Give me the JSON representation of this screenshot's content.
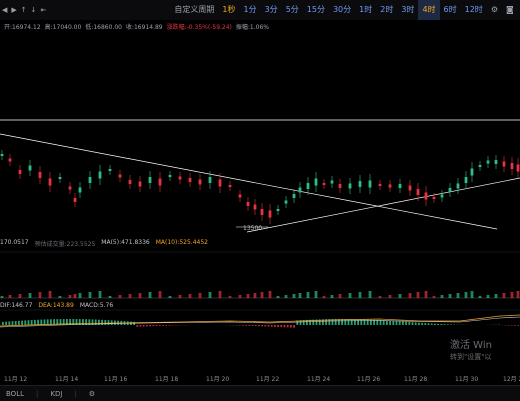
{
  "toolbar": {
    "items": [
      {
        "label": "自定义周期",
        "type": "custom"
      },
      {
        "label": "1秒",
        "type": "active"
      },
      {
        "label": "1分",
        "type": "interval"
      },
      {
        "label": "3分",
        "type": "interval"
      },
      {
        "label": "5分",
        "type": "interval"
      },
      {
        "label": "15分",
        "type": "interval"
      },
      {
        "label": "30分",
        "type": "interval"
      },
      {
        "label": "1时",
        "type": "interval"
      },
      {
        "label": "2时",
        "type": "interval"
      },
      {
        "label": "3时",
        "type": "interval"
      },
      {
        "label": "4时",
        "type": "selected"
      },
      {
        "label": "6时",
        "type": "interval"
      },
      {
        "label": "12时",
        "type": "interval"
      }
    ]
  },
  "ohlc": {
    "open": "开:16974.12",
    "high": "高:17040.00",
    "low": "低:16860.00",
    "close": "收:16914.89",
    "change": "涨跌幅:-0.35%(-59.24)",
    "amplitude": "振幅:1.06%"
  },
  "ma_row": {
    "value_partial": "170.0517",
    "predicted": "预估成交量:223.5525",
    "ma5": "MA(5):471.8336",
    "ma10": "MA(10):525.4452"
  },
  "macd_row": {
    "dif": "DIF:146.77",
    "dea": "DEA:143.89",
    "macd": "MACD:5.76"
  },
  "price_label": "13500",
  "xaxis": {
    "labels": [
      "11月 12",
      "11月 14",
      "11月 16",
      "11月 18",
      "11月 20",
      "11月 22",
      "11月 24",
      "11月 26",
      "11月 28",
      "11月 30",
      "12月 2"
    ]
  },
  "bottom_tabs": [
    "BOLL",
    "KDJ"
  ],
  "watermark": {
    "line1": "激活 Win",
    "line2": "转到\"设置\"以"
  },
  "colors": {
    "up": "#2ebd85",
    "down": "#e5333f",
    "accent": "#f5a623",
    "bg": "#000000"
  }
}
